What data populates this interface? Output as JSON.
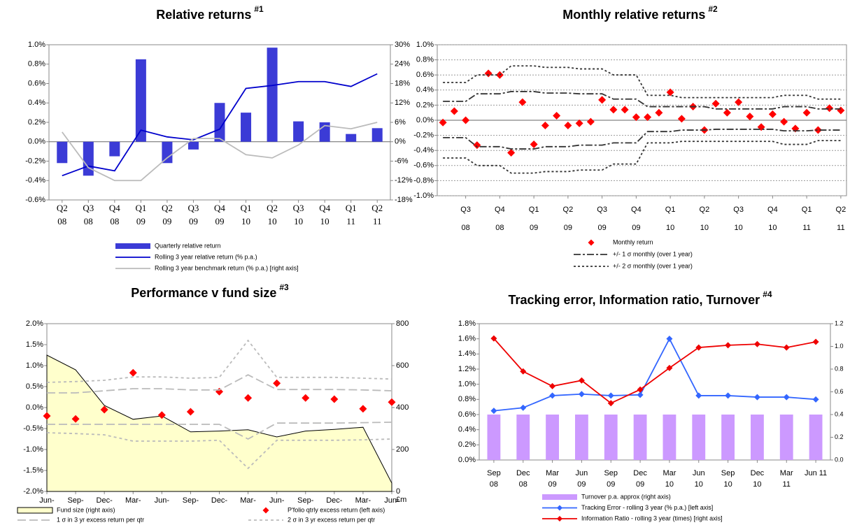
{
  "chart_data": [
    {
      "type": "combo",
      "title": "Relative returns",
      "title_note": "#1",
      "categories": [
        [
          "Q2",
          "08"
        ],
        [
          "Q3",
          "08"
        ],
        [
          "Q4",
          "08"
        ],
        [
          "Q1",
          "09"
        ],
        [
          "Q2",
          "09"
        ],
        [
          "Q3",
          "09"
        ],
        [
          "Q4",
          "09"
        ],
        [
          "Q1",
          "10"
        ],
        [
          "Q2",
          "10"
        ],
        [
          "Q3",
          "10"
        ],
        [
          "Q4",
          "10"
        ],
        [
          "Q1",
          "11"
        ],
        [
          "Q2",
          "11"
        ]
      ],
      "ylim": [
        -0.6,
        1.0
      ],
      "yticks": [
        {
          "value": 1.0,
          "label": "1.0%"
        },
        {
          "value": 0.8,
          "label": "0.8%"
        },
        {
          "value": 0.6,
          "label": "0.6%"
        },
        {
          "value": 0.4,
          "label": "0.4%"
        },
        {
          "value": 0.2,
          "label": "0.2%"
        },
        {
          "value": 0,
          "label": "0.0%"
        },
        {
          "value": -0.2,
          "label": "-0.2%"
        },
        {
          "value": -0.4,
          "label": "-0.4%"
        },
        {
          "value": -0.6,
          "label": "-0.6%"
        }
      ],
      "y2lim": [
        -18,
        30
      ],
      "y2ticks": [
        {
          "value": 30,
          "label": "30%"
        },
        {
          "value": 24,
          "label": "24%"
        },
        {
          "value": 18,
          "label": "18%"
        },
        {
          "value": 12,
          "label": "12%"
        },
        {
          "value": 6,
          "label": "6%"
        },
        {
          "value": 0,
          "label": "0%"
        },
        {
          "value": -6,
          "label": "-6%"
        },
        {
          "value": -12,
          "label": "-12%"
        },
        {
          "value": -18,
          "label": "-18%"
        }
      ],
      "zero_line": true,
      "grid": false,
      "series": [
        {
          "name": "Quarterly relative return",
          "kind": "bar",
          "color": "#3b3bd6",
          "values": [
            -0.22,
            -0.35,
            -0.15,
            0.85,
            -0.22,
            -0.08,
            0.4,
            0.3,
            0.97,
            0.21,
            0.2,
            0.08,
            0.14
          ]
        },
        {
          "name": "Rolling 3 year relative return (% p.a.)",
          "kind": "line",
          "color": "#0000cc",
          "values": [
            -0.35,
            -0.25,
            -0.3,
            0.12,
            0.05,
            0.02,
            0.13,
            0.55,
            0.58,
            0.62,
            0.62,
            0.57,
            0.7
          ]
        },
        {
          "name": "Rolling 3 year benchmark return (% p.a.) [right axis]",
          "kind": "line",
          "color": "#bbbbbb",
          "axis": "y2",
          "values": [
            3,
            -8,
            -12,
            -12,
            -5,
            1,
            1,
            -4,
            -5,
            -1,
            5,
            4,
            6
          ]
        }
      ]
    },
    {
      "type": "scatter",
      "title": "Monthly relative returns",
      "title_note": "#2",
      "categories": [
        null,
        null,
        [
          "Q3",
          "08"
        ],
        null,
        null,
        [
          "Q4",
          "08"
        ],
        null,
        null,
        [
          "Q1",
          "09"
        ],
        null,
        null,
        [
          "Q2",
          "09"
        ],
        null,
        null,
        [
          "Q3",
          "09"
        ],
        null,
        null,
        [
          "Q4",
          "09"
        ],
        null,
        null,
        [
          "Q1",
          "10"
        ],
        null,
        null,
        [
          "Q2",
          "10"
        ],
        null,
        null,
        [
          "Q3",
          "10"
        ],
        null,
        null,
        [
          "Q4",
          "10"
        ],
        null,
        null,
        [
          "Q1",
          "11"
        ],
        null,
        null,
        [
          "Q2",
          "11"
        ]
      ],
      "ylim": [
        -1.0,
        1.0
      ],
      "yticks": [
        {
          "value": 1.0,
          "label": "1.0%"
        },
        {
          "value": 0.8,
          "label": "0.8%"
        },
        {
          "value": 0.6,
          "label": "0.6%"
        },
        {
          "value": 0.4,
          "label": "0.4%"
        },
        {
          "value": 0.2,
          "label": "0.2%"
        },
        {
          "value": 0,
          "label": "0.0%"
        },
        {
          "value": -0.2,
          "label": "-0.2%"
        },
        {
          "value": -0.4,
          "label": "-0.4%"
        },
        {
          "value": -0.6,
          "label": "-0.6%"
        },
        {
          "value": -0.8,
          "label": "-0.8%"
        },
        {
          "value": -1.0,
          "label": "-1.0%"
        }
      ],
      "zero_line": true,
      "grid": true,
      "series": [
        {
          "name": "Monthly return",
          "kind": "scatter",
          "color": "#ff0000",
          "values": [
            -0.03,
            0.12,
            0.0,
            -0.33,
            0.62,
            0.6,
            -0.43,
            0.24,
            -0.32,
            -0.07,
            0.06,
            -0.07,
            -0.04,
            -0.02,
            0.27,
            0.14,
            0.14,
            0.04,
            0.04,
            0.1,
            0.37,
            0.02,
            0.18,
            -0.13,
            0.22,
            0.1,
            0.24,
            0.05,
            -0.09,
            0.08,
            -0.02,
            -0.11,
            0.1,
            -0.13,
            0.16,
            0.13
          ]
        },
        {
          "name": "+/- 1 σ monthly (over 1 year)",
          "kind": "line",
          "color": "#333333",
          "dash": "10,3,3,3",
          "values": [
            0.25,
            0.25,
            0.25,
            0.35,
            0.35,
            0.35,
            0.38,
            0.38,
            0.38,
            0.36,
            0.36,
            0.36,
            0.35,
            0.35,
            0.35,
            0.28,
            0.28,
            0.28,
            0.18,
            0.18,
            0.18,
            0.18,
            0.18,
            0.18,
            0.15,
            0.15,
            0.15,
            0.15,
            0.15,
            0.15,
            0.18,
            0.18,
            0.18,
            0.15,
            0.15,
            0.15
          ]
        },
        {
          "kind": "line",
          "color": "#333333",
          "dash": "10,3,3,3",
          "values": [
            -0.23,
            -0.23,
            -0.23,
            -0.35,
            -0.35,
            -0.35,
            -0.38,
            -0.38,
            -0.38,
            -0.35,
            -0.35,
            -0.35,
            -0.33,
            -0.33,
            -0.33,
            -0.3,
            -0.3,
            -0.3,
            -0.15,
            -0.15,
            -0.15,
            -0.13,
            -0.13,
            -0.13,
            -0.12,
            -0.12,
            -0.12,
            -0.12,
            -0.12,
            -0.12,
            -0.14,
            -0.14,
            -0.14,
            -0.13,
            -0.13,
            -0.13
          ]
        },
        {
          "name": "+/- 2 σ monthly (over 1 year)",
          "kind": "line",
          "color": "#333333",
          "dash": "3,3",
          "values": [
            0.5,
            0.5,
            0.5,
            0.6,
            0.6,
            0.6,
            0.72,
            0.72,
            0.72,
            0.7,
            0.7,
            0.7,
            0.68,
            0.68,
            0.68,
            0.6,
            0.6,
            0.6,
            0.33,
            0.33,
            0.33,
            0.3,
            0.3,
            0.3,
            0.3,
            0.3,
            0.3,
            0.3,
            0.3,
            0.3,
            0.33,
            0.33,
            0.33,
            0.28,
            0.28,
            0.28
          ]
        },
        {
          "kind": "line",
          "color": "#333333",
          "dash": "3,3",
          "values": [
            -0.5,
            -0.5,
            -0.5,
            -0.6,
            -0.6,
            -0.6,
            -0.7,
            -0.7,
            -0.7,
            -0.68,
            -0.68,
            -0.68,
            -0.66,
            -0.66,
            -0.66,
            -0.58,
            -0.58,
            -0.58,
            -0.3,
            -0.3,
            -0.3,
            -0.28,
            -0.28,
            -0.28,
            -0.28,
            -0.28,
            -0.28,
            -0.28,
            -0.28,
            -0.28,
            -0.32,
            -0.32,
            -0.32,
            -0.27,
            -0.27,
            -0.27
          ]
        }
      ]
    },
    {
      "type": "combo",
      "title": "Performance v fund size",
      "title_note": "#3",
      "categories": [
        [
          "Jun-"
        ],
        [
          "Sep-"
        ],
        [
          "Dec-"
        ],
        [
          "Mar-"
        ],
        [
          "Jun-"
        ],
        [
          "Sep-"
        ],
        [
          "Dec-"
        ],
        [
          "Mar-"
        ],
        [
          "Jun-"
        ],
        [
          "Sep-"
        ],
        [
          "Dec-"
        ],
        [
          "Mar-"
        ],
        [
          "Jun-"
        ]
      ],
      "ylim": [
        -2.0,
        2.0
      ],
      "yticks": [
        {
          "value": 2.0,
          "label": "2.0%"
        },
        {
          "value": 1.5,
          "label": "1.5%"
        },
        {
          "value": 1.0,
          "label": "1.0%"
        },
        {
          "value": 0.5,
          "label": "0.5%"
        },
        {
          "value": 0,
          "label": "0.0%"
        },
        {
          "value": -0.5,
          "label": "-0.5%"
        },
        {
          "value": -1.0,
          "label": "-1.0%"
        },
        {
          "value": -1.5,
          "label": "-1.5%"
        },
        {
          "value": -2.0,
          "label": "-2.0%"
        }
      ],
      "y2lim": [
        0,
        800
      ],
      "y2ticks": [
        0,
        200,
        400,
        600,
        800
      ],
      "y2label": "£m",
      "zero_line": false,
      "grid": false,
      "series": [
        {
          "name": "Fund size (right axis)",
          "kind": "area",
          "color": "#ffffcc",
          "line_color": "#000000",
          "axis": "y2",
          "values": [
            650,
            580,
            410,
            344,
            360,
            284,
            288,
            294,
            260,
            288,
            296,
            306,
            40
          ]
        },
        {
          "name": "P'folio qtrly excess return (left axis)",
          "kind": "scatter",
          "color": "#ff0000",
          "values": [
            -0.2,
            -0.27,
            -0.05,
            0.83,
            -0.18,
            -0.1,
            0.38,
            0.23,
            0.58,
            0.23,
            0.2,
            -0.03,
            0.13
          ]
        },
        {
          "name": "1 σ in 3 yr excess return per qtr",
          "kind": "line",
          "color": "#bbbbbb",
          "dash": "12,5",
          "values": [
            0.35,
            0.35,
            0.4,
            0.45,
            0.45,
            0.42,
            0.42,
            0.78,
            0.43,
            0.43,
            0.43,
            0.42,
            0.4
          ]
        },
        {
          "kind": "line",
          "color": "#bbbbbb",
          "dash": "12,5",
          "values": [
            -0.4,
            -0.4,
            -0.4,
            -0.4,
            -0.4,
            -0.4,
            -0.4,
            -0.75,
            -0.37,
            -0.37,
            -0.37,
            -0.36,
            -0.35
          ]
        },
        {
          "name": "2 σ in 3 yr excess return per qtr",
          "kind": "line",
          "color": "#bbbbbb",
          "dash": "4,4",
          "values": [
            0.6,
            0.62,
            0.65,
            0.73,
            0.73,
            0.7,
            0.72,
            1.6,
            0.72,
            0.72,
            0.72,
            0.7,
            0.68
          ]
        },
        {
          "kind": "line",
          "color": "#bbbbbb",
          "dash": "4,4",
          "values": [
            -0.6,
            -0.62,
            -0.65,
            -0.8,
            -0.8,
            -0.8,
            -0.78,
            -1.45,
            -0.78,
            -0.78,
            -0.78,
            -0.77,
            -0.75
          ]
        }
      ]
    },
    {
      "type": "combo",
      "title": "Tracking error, Information ratio, Turnover",
      "title_note": "#4",
      "categories": [
        [
          "Sep",
          "08"
        ],
        [
          "Dec",
          "08"
        ],
        [
          "Mar",
          "09"
        ],
        [
          "Jun",
          "09"
        ],
        [
          "Sep",
          "09"
        ],
        [
          "Dec",
          "09"
        ],
        [
          "Mar",
          "10"
        ],
        [
          "Jun",
          "10"
        ],
        [
          "Sep",
          "10"
        ],
        [
          "Dec",
          "10"
        ],
        [
          "Mar",
          "11"
        ],
        [
          "Jun 11"
        ]
      ],
      "ylim": [
        0,
        1.8
      ],
      "yticks": [
        {
          "value": 1.8,
          "label": "1.8%"
        },
        {
          "value": 1.6,
          "label": "1.6%"
        },
        {
          "value": 1.4,
          "label": "1.4%"
        },
        {
          "value": 1.2,
          "label": "1.2%"
        },
        {
          "value": 1.0,
          "label": "1.0%"
        },
        {
          "value": 0.8,
          "label": "0.8%"
        },
        {
          "value": 0.6,
          "label": "0.6%"
        },
        {
          "value": 0.4,
          "label": "0.4%"
        },
        {
          "value": 0.2,
          "label": "0.2%"
        },
        {
          "value": 0,
          "label": "0.0%"
        }
      ],
      "y2lim": [
        0,
        1.2
      ],
      "y2ticks": [
        {
          "value": 0,
          "label": "0.0"
        },
        0.2,
        0.4,
        0.6,
        0.8,
        {
          "value": 1,
          "label": "1.0"
        },
        1.2
      ],
      "zero_line": false,
      "grid": false,
      "series": [
        {
          "name": "Turnover p.a. approx (right axis)",
          "kind": "bar",
          "color": "#cc99ff",
          "axis": "y2",
          "values": [
            0.4,
            0.4,
            0.4,
            0.4,
            0.4,
            0.4,
            0.4,
            0.4,
            0.4,
            0.4,
            0.4,
            0.4
          ]
        },
        {
          "name": "Tracking Error - rolling 3 year (% p.a.) [left axis]",
          "kind": "line",
          "marker": true,
          "color": "#3366ff",
          "values": [
            0.65,
            0.69,
            0.85,
            0.87,
            0.85,
            0.86,
            1.6,
            0.85,
            0.85,
            0.83,
            0.83,
            0.8
          ]
        },
        {
          "name": "Information Ratio - rolling 3 year (times) [right axis]",
          "kind": "line",
          "marker": true,
          "color": "#ee0000",
          "axis": "y2",
          "values": [
            1.07,
            0.78,
            0.65,
            0.7,
            0.5,
            0.62,
            0.81,
            0.99,
            1.01,
            1.02,
            0.99,
            1.04
          ]
        }
      ]
    }
  ]
}
